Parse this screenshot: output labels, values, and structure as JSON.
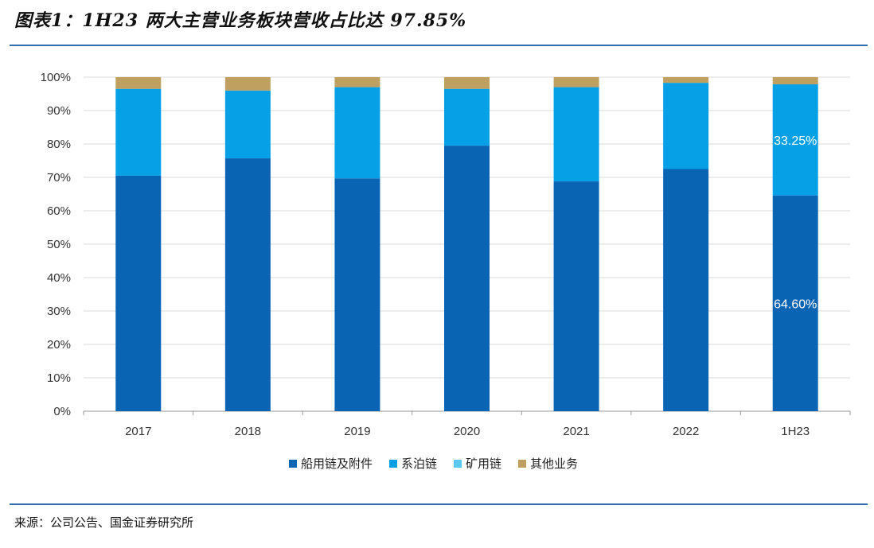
{
  "header": {
    "title": "图表1：1H23 两大主营业务板块营收占比达 97.85%"
  },
  "footer": {
    "source": "来源：公司公告、国金证券研究所"
  },
  "colors": {
    "series_1": "#0a64b4",
    "series_2": "#06a0e6",
    "series_3": "#5cc8f0",
    "series_4": "#c0a060",
    "grid": "#d9d9d9",
    "axis": "#999999"
  },
  "chart_data": {
    "type": "bar",
    "stacked": true,
    "title": "",
    "xlabel": "",
    "ylabel": "",
    "ylim": [
      0,
      100
    ],
    "y_ticks": [
      "0%",
      "10%",
      "20%",
      "30%",
      "40%",
      "50%",
      "60%",
      "70%",
      "80%",
      "90%",
      "100%"
    ],
    "categories": [
      "2017",
      "2018",
      "2019",
      "2020",
      "2021",
      "2022",
      "1H23"
    ],
    "series": [
      {
        "name": "船用链及附件",
        "values": [
          70.5,
          75.7,
          69.7,
          79.5,
          68.8,
          72.5,
          64.6
        ]
      },
      {
        "name": "系泊链",
        "values": [
          26.0,
          20.3,
          27.3,
          17.0,
          28.2,
          25.8,
          33.25
        ]
      },
      {
        "name": "矿用链",
        "values": [
          0,
          0,
          0,
          0,
          0,
          0,
          0
        ]
      },
      {
        "name": "其他业务",
        "values": [
          3.5,
          4.0,
          3.0,
          3.5,
          3.0,
          1.7,
          2.15
        ]
      }
    ],
    "data_labels": [
      {
        "category": "1H23",
        "series": "船用链及附件",
        "text": "64.60%"
      },
      {
        "category": "1H23",
        "series": "系泊链",
        "text": "33.25%"
      }
    ],
    "legend_position": "bottom"
  }
}
